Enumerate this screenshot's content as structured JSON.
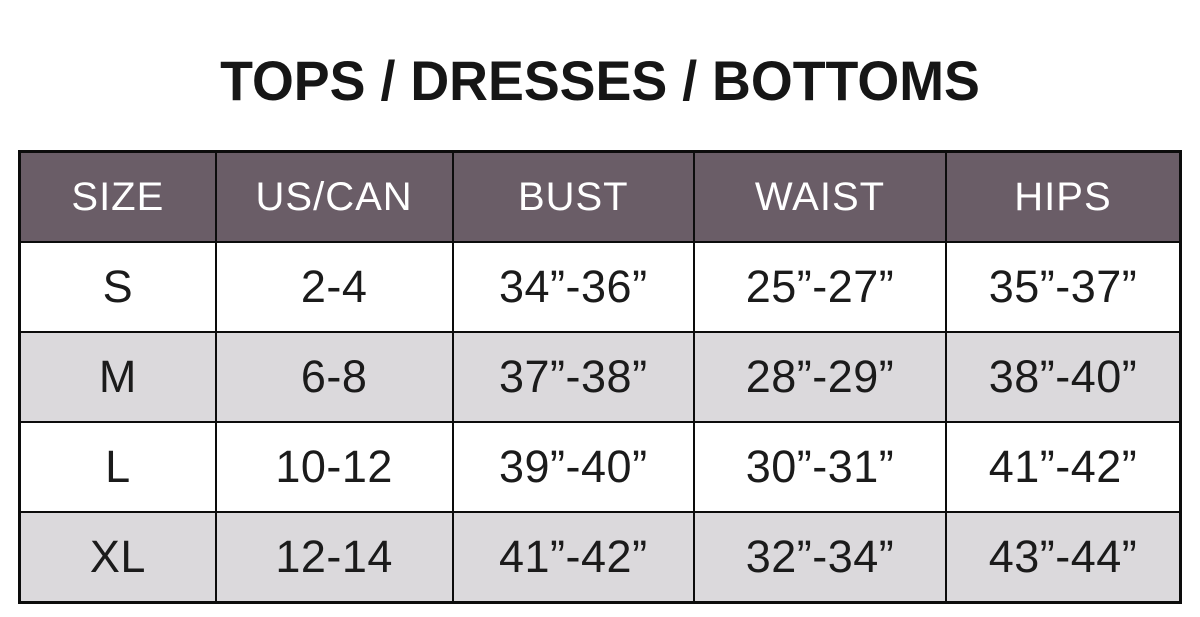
{
  "title": "TOPS / DRESSES / BOTTOMS",
  "colors": {
    "header_bg": "#6A5D67",
    "header_text": "#FFFFFF",
    "row_bg": "#FFFFFF",
    "row_alt_bg": "#DBD9DC",
    "border": "#0C0C0C",
    "body_text": "#1B1B1B"
  },
  "table": {
    "headers": [
      "SIZE",
      "US/CAN",
      "BUST",
      "WAIST",
      "HIPS"
    ],
    "rows": [
      {
        "cells": [
          "S",
          "2-4",
          "34”-36”",
          "25”-27”",
          "35”-37”"
        ]
      },
      {
        "cells": [
          "M",
          "6-8",
          "37”-38”",
          "28”-29”",
          "38”-40”"
        ]
      },
      {
        "cells": [
          "L",
          "10-12",
          "39”-40”",
          "30”-31”",
          "41”-42”"
        ]
      },
      {
        "cells": [
          "XL",
          "12-14",
          "41”-42”",
          "32”-34”",
          "43”-44”"
        ]
      }
    ]
  },
  "chart_data": {
    "type": "table",
    "title": "TOPS / DRESSES / BOTTOMS",
    "columns": [
      "SIZE",
      "US/CAN",
      "BUST",
      "WAIST",
      "HIPS"
    ],
    "rows": [
      [
        "S",
        "2-4",
        "34”-36”",
        "25”-27”",
        "35”-37”"
      ],
      [
        "M",
        "6-8",
        "37”-38”",
        "28”-29”",
        "38”-40”"
      ],
      [
        "L",
        "10-12",
        "39”-40”",
        "30”-31”",
        "41”-42”"
      ],
      [
        "XL",
        "12-14",
        "41”-42”",
        "32”-34”",
        "43”-44”"
      ]
    ],
    "layout": {
      "header_style": "dark-plum background, white text",
      "row_striping": "white / light gray alternating starting with white",
      "grid": true
    }
  }
}
